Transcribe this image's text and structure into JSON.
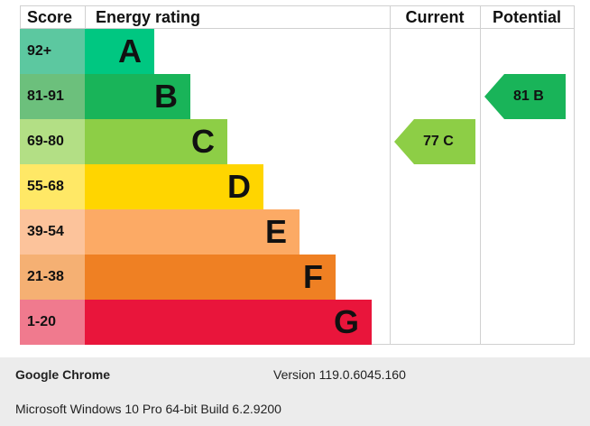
{
  "headers": {
    "score": "Score",
    "rating": "Energy rating",
    "current": "Current",
    "potential": "Potential"
  },
  "bands": [
    {
      "score": "92+",
      "letter": "A",
      "score_bg": "#5cc8a0",
      "bar_color": "#00c781",
      "width_frac": 0.228
    },
    {
      "score": "81-91",
      "letter": "B",
      "score_bg": "#6cc07c",
      "bar_color": "#19b459",
      "width_frac": 0.347
    },
    {
      "score": "69-80",
      "letter": "C",
      "score_bg": "#b3df85",
      "bar_color": "#8dce46",
      "width_frac": 0.466
    },
    {
      "score": "55-68",
      "letter": "D",
      "score_bg": "#ffe866",
      "bar_color": "#ffd500",
      "width_frac": 0.585
    },
    {
      "score": "39-54",
      "letter": "E",
      "score_bg": "#fcc39b",
      "bar_color": "#fcaa65",
      "width_frac": 0.703
    },
    {
      "score": "21-38",
      "letter": "F",
      "score_bg": "#f5b073",
      "bar_color": "#ef8023",
      "width_frac": 0.822
    },
    {
      "score": "1-20",
      "letter": "G",
      "score_bg": "#f07a8e",
      "bar_color": "#e9153b",
      "width_frac": 0.941
    }
  ],
  "current": {
    "label": "77 C",
    "band_index": 2,
    "color": "#8dce46"
  },
  "potential": {
    "label": "81 B",
    "band_index": 1,
    "color": "#19b459"
  },
  "footer": {
    "browser": "Google Chrome",
    "version": "Version 119.0.6045.160",
    "os": "Microsoft Windows 10 Pro 64-bit Build 6.2.9200"
  }
}
